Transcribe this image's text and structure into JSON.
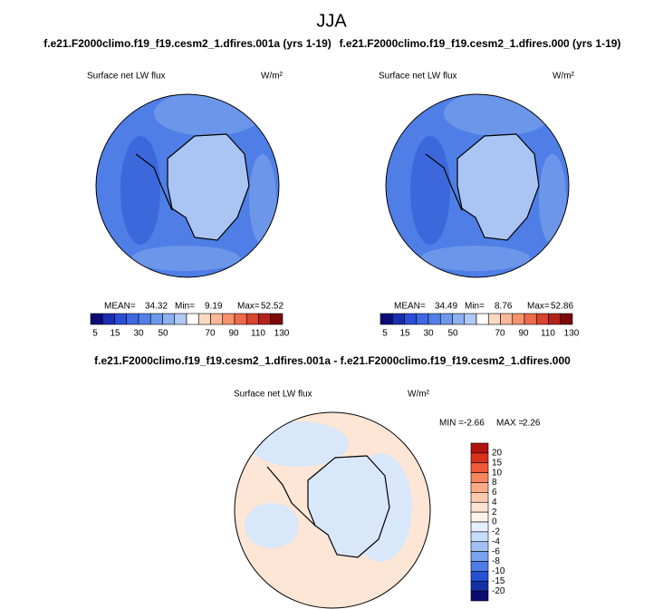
{
  "title": "JJA",
  "panels": [
    {
      "subtitle": "f.e21.F2000climo.f19_f19.cesm2_1.dfires.001a (yrs 1-19)",
      "label": "Surface net LW flux",
      "units": "W/m²",
      "stats": [
        {
          "label": "MEAN=",
          "value": 34.32
        },
        {
          "label": "Min=",
          "value": 9.19
        },
        {
          "label": "Max=",
          "value": 52.52
        }
      ]
    },
    {
      "subtitle": "f.e21.F2000climo.f19_f19.cesm2_1.dfires.000 (yrs 1-19)",
      "label": "Surface net LW flux",
      "units": "W/m²",
      "stats": [
        {
          "label": "MEAN=",
          "value": 34.49
        },
        {
          "label": "Min=",
          "value": 8.76
        },
        {
          "label": "Max=",
          "value": 52.86
        }
      ]
    }
  ],
  "colorbar": {
    "labels": [
      5,
      15,
      30,
      50,
      70,
      90,
      110,
      130
    ],
    "colors": [
      "#0c0c78",
      "#1a2fb0",
      "#2a4ed6",
      "#3d68e2",
      "#5280e8",
      "#6e98ec",
      "#8db0f0",
      "#b0c9f5",
      "#ffffff",
      "#fdd9c4",
      "#fbb798",
      "#f7926c",
      "#ee6b4a",
      "#d8442e",
      "#b32219",
      "#7c0a0a"
    ]
  },
  "difference": {
    "subtitle": "f.e21.F2000climo.f19_f19.cesm2_1.dfires.001a - f.e21.F2000climo.f19_f19.cesm2_1.dfires.000",
    "label": "Surface net LW flux",
    "units": "W/m²",
    "stats": [
      {
        "label": "MIN =",
        "value": -2.66
      },
      {
        "label": "MAX =",
        "value": 2.26
      }
    ],
    "colorbar": {
      "labels": [
        20,
        15,
        10,
        8,
        6,
        4,
        2,
        0,
        -2,
        -4,
        -6,
        -8,
        -10,
        -15,
        -20
      ],
      "colors": [
        "#b3130f",
        "#d8321e",
        "#ee5a37",
        "#f7855d",
        "#fbab87",
        "#fdcaae",
        "#fee3d3",
        "#fff3ea",
        "#e6efff",
        "#c7dbfa",
        "#a2c0f4",
        "#7aa1ee",
        "#4f7ce6",
        "#2650d5",
        "#1330a8",
        "#0b0b70"
      ]
    }
  }
}
